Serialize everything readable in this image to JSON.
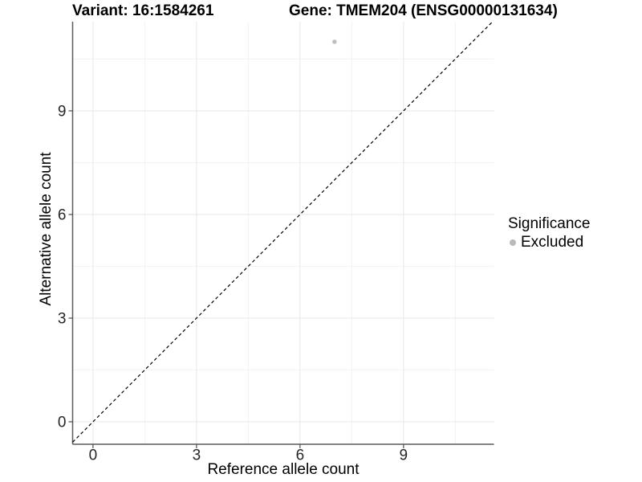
{
  "header": {
    "variant_title": "Variant: 16:1584261",
    "gene_title": "Gene: TMEM204 (ENSG00000131634)"
  },
  "chart_data": {
    "type": "scatter",
    "title": "Variant: 16:1584261    Gene: TMEM204 (ENSG00000131634)",
    "xlabel": "Reference allele count",
    "ylabel": "Alternative allele count",
    "xlim": [
      -0.59,
      11.62
    ],
    "ylim": [
      -0.65,
      11.58
    ],
    "x_ticks": [
      0,
      3,
      6,
      9
    ],
    "y_ticks": [
      0,
      3,
      6,
      9
    ],
    "x_minor_ticks": [
      1.5,
      4.5,
      7.5,
      10.5
    ],
    "y_minor_ticks": [
      1.5,
      4.5,
      7.5,
      10.5
    ],
    "grid": "major and minor, light gray on white",
    "legend_position": "right",
    "reference_line": {
      "kind": "identity",
      "slope": 1,
      "intercept": 0,
      "style": "dashed",
      "color": "#000000"
    },
    "series": [
      {
        "name": "Excluded",
        "color": "#bfbfbf",
        "points": [
          {
            "x": 7,
            "y": 11
          }
        ]
      }
    ],
    "legend": {
      "title": "Significance",
      "entries": [
        {
          "label": "Excluded",
          "color": "#b9b9b9"
        }
      ]
    },
    "style": {
      "grid_major_color": "#e7e7e7",
      "grid_minor_color": "#f2f2f2",
      "axis_line_color": "#595959",
      "tick_mark_color": "#4d4d4d",
      "tick_label_color": "#262626"
    }
  }
}
